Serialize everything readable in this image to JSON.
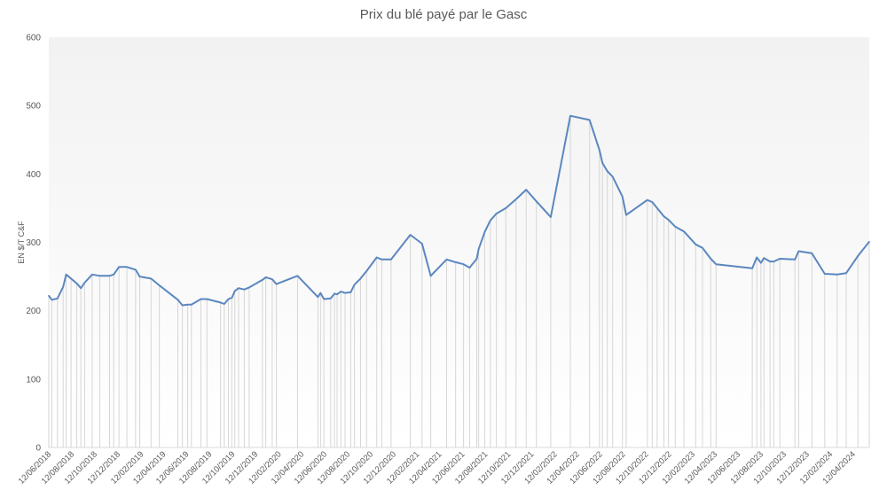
{
  "chart_data": {
    "type": "area",
    "title": "Prix du blé payé par le Gasc",
    "xlabel": "",
    "ylabel": "EN $/T C&F",
    "ylim": [
      0,
      600
    ],
    "yticks": [
      0,
      100,
      200,
      300,
      400,
      500,
      600
    ],
    "grid": false,
    "xticks": [
      "12/06/2018",
      "12/08/2018",
      "12/10/2018",
      "12/12/2018",
      "12/02/2019",
      "12/04/2019",
      "12/06/2019",
      "12/08/2019",
      "12/10/2019",
      "12/12/2019",
      "12/02/2020",
      "12/04/2020",
      "12/06/2020",
      "12/08/2020",
      "12/10/2020",
      "12/12/2020",
      "12/02/2021",
      "12/04/2021",
      "12/06/2021",
      "12/08/2021",
      "12/10/2021",
      "12/12/2021",
      "12/02/2022",
      "12/04/2022",
      "12/06/2022",
      "12/08/2022",
      "12/10/2022",
      "12/12/2022",
      "12/02/2023",
      "12/04/2023",
      "12/06/2023",
      "12/08/2023",
      "12/10/2023",
      "12/12/2023",
      "12/02/2024",
      "12/04/2024"
    ],
    "series": [
      {
        "values": [
          {
            "x": "2018-06-12",
            "y": 222
          },
          {
            "x": "2018-06-20",
            "y": 216
          },
          {
            "x": "2018-07-05",
            "y": 218
          },
          {
            "x": "2018-07-20",
            "y": 235
          },
          {
            "x": "2018-07-28",
            "y": 253
          },
          {
            "x": "2018-08-10",
            "y": 247
          },
          {
            "x": "2018-08-25",
            "y": 240
          },
          {
            "x": "2018-09-05",
            "y": 233
          },
          {
            "x": "2018-09-15",
            "y": 241
          },
          {
            "x": "2018-10-05",
            "y": 253
          },
          {
            "x": "2018-10-25",
            "y": 251
          },
          {
            "x": "2018-11-20",
            "y": 251
          },
          {
            "x": "2018-12-01",
            "y": 253
          },
          {
            "x": "2018-12-15",
            "y": 264
          },
          {
            "x": "2019-01-05",
            "y": 264
          },
          {
            "x": "2019-01-28",
            "y": 260
          },
          {
            "x": "2019-02-08",
            "y": 250
          },
          {
            "x": "2019-03-10",
            "y": 247
          },
          {
            "x": "2019-04-01",
            "y": 237
          },
          {
            "x": "2019-05-20",
            "y": 216
          },
          {
            "x": "2019-06-01",
            "y": 208
          },
          {
            "x": "2019-06-15",
            "y": 209
          },
          {
            "x": "2019-06-25",
            "y": 209
          },
          {
            "x": "2019-07-20",
            "y": 217
          },
          {
            "x": "2019-08-05",
            "y": 217
          },
          {
            "x": "2019-09-10",
            "y": 212
          },
          {
            "x": "2019-09-20",
            "y": 210
          },
          {
            "x": "2019-10-01",
            "y": 217
          },
          {
            "x": "2019-10-10",
            "y": 219
          },
          {
            "x": "2019-10-18",
            "y": 229
          },
          {
            "x": "2019-10-28",
            "y": 233
          },
          {
            "x": "2019-11-12",
            "y": 231
          },
          {
            "x": "2019-11-25",
            "y": 234
          },
          {
            "x": "2019-12-30",
            "y": 245
          },
          {
            "x": "2020-01-08",
            "y": 249
          },
          {
            "x": "2020-01-25",
            "y": 246
          },
          {
            "x": "2020-02-05",
            "y": 239
          },
          {
            "x": "2020-04-01",
            "y": 251
          },
          {
            "x": "2020-05-25",
            "y": 220
          },
          {
            "x": "2020-06-01",
            "y": 226
          },
          {
            "x": "2020-06-10",
            "y": 217
          },
          {
            "x": "2020-06-28",
            "y": 218
          },
          {
            "x": "2020-07-08",
            "y": 225
          },
          {
            "x": "2020-07-15",
            "y": 224
          },
          {
            "x": "2020-07-25",
            "y": 228
          },
          {
            "x": "2020-08-05",
            "y": 226
          },
          {
            "x": "2020-08-20",
            "y": 227
          },
          {
            "x": "2020-08-30",
            "y": 238
          },
          {
            "x": "2020-09-15",
            "y": 247
          },
          {
            "x": "2020-10-01",
            "y": 258
          },
          {
            "x": "2020-10-28",
            "y": 278
          },
          {
            "x": "2020-11-10",
            "y": 275
          },
          {
            "x": "2020-12-05",
            "y": 275
          },
          {
            "x": "2021-01-25",
            "y": 311
          },
          {
            "x": "2021-02-25",
            "y": 298
          },
          {
            "x": "2021-03-20",
            "y": 251
          },
          {
            "x": "2021-05-01",
            "y": 275
          },
          {
            "x": "2021-05-25",
            "y": 271
          },
          {
            "x": "2021-06-15",
            "y": 268
          },
          {
            "x": "2021-07-01",
            "y": 263
          },
          {
            "x": "2021-07-20",
            "y": 276
          },
          {
            "x": "2021-07-25",
            "y": 290
          },
          {
            "x": "2021-08-10",
            "y": 315
          },
          {
            "x": "2021-08-25",
            "y": 332
          },
          {
            "x": "2021-09-10",
            "y": 342
          },
          {
            "x": "2021-10-05",
            "y": 350
          },
          {
            "x": "2021-11-01",
            "y": 363
          },
          {
            "x": "2021-11-28",
            "y": 377
          },
          {
            "x": "2021-12-25",
            "y": 360
          },
          {
            "x": "2022-02-01",
            "y": 337
          },
          {
            "x": "2022-03-25",
            "y": 485
          },
          {
            "x": "2022-05-15",
            "y": 479
          },
          {
            "x": "2022-06-10",
            "y": 435
          },
          {
            "x": "2022-06-18",
            "y": 416
          },
          {
            "x": "2022-07-01",
            "y": 404
          },
          {
            "x": "2022-07-15",
            "y": 396
          },
          {
            "x": "2022-08-10",
            "y": 367
          },
          {
            "x": "2022-08-20",
            "y": 340
          },
          {
            "x": "2022-10-15",
            "y": 362
          },
          {
            "x": "2022-10-28",
            "y": 359
          },
          {
            "x": "2022-11-10",
            "y": 350
          },
          {
            "x": "2022-11-28",
            "y": 338
          },
          {
            "x": "2022-12-10",
            "y": 333
          },
          {
            "x": "2022-12-28",
            "y": 323
          },
          {
            "x": "2023-01-20",
            "y": 316
          },
          {
            "x": "2023-02-20",
            "y": 297
          },
          {
            "x": "2023-03-10",
            "y": 292
          },
          {
            "x": "2023-04-01",
            "y": 276
          },
          {
            "x": "2023-04-15",
            "y": 268
          },
          {
            "x": "2023-07-20",
            "y": 262
          },
          {
            "x": "2023-08-01",
            "y": 278
          },
          {
            "x": "2023-08-12",
            "y": 270
          },
          {
            "x": "2023-08-20",
            "y": 277
          },
          {
            "x": "2023-09-05",
            "y": 272
          },
          {
            "x": "2023-09-15",
            "y": 272
          },
          {
            "x": "2023-10-01",
            "y": 276
          },
          {
            "x": "2023-11-10",
            "y": 275
          },
          {
            "x": "2023-11-20",
            "y": 287
          },
          {
            "x": "2023-12-25",
            "y": 284
          },
          {
            "x": "2024-01-28",
            "y": 254
          },
          {
            "x": "2024-03-01",
            "y": 253
          },
          {
            "x": "2024-03-25",
            "y": 255
          },
          {
            "x": "2024-04-25",
            "y": 280
          },
          {
            "x": "2024-05-25",
            "y": 301
          }
        ]
      }
    ],
    "colors": {
      "line": "#5b87bf",
      "drop_lines": "#d6d6d6",
      "gradient_top": "#f2f2f2",
      "gradient_bottom": "#ffffff"
    }
  }
}
